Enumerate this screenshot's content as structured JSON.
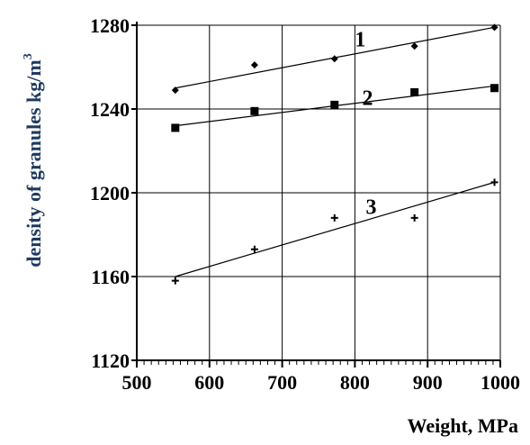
{
  "chart_data": {
    "type": "scatter",
    "xlabel": "Weight, MPa",
    "ylabel_main": "density of granules kg/m",
    "ylabel_sup": "3",
    "xlim": [
      500,
      1000
    ],
    "ylim": [
      1120,
      1280
    ],
    "xticks": [
      500,
      600,
      700,
      800,
      900,
      1000
    ],
    "yticks": [
      1120,
      1160,
      1200,
      1240,
      1280
    ],
    "grid": true,
    "xlabel_color": "#000000",
    "ylabel_color": "#1f3a5f",
    "series": [
      {
        "name": "1",
        "marker": "diamond",
        "points": [
          [
            553,
            1249
          ],
          [
            662,
            1261
          ],
          [
            772,
            1264
          ],
          [
            882,
            1270
          ],
          [
            992,
            1279
          ]
        ],
        "fit": [
          [
            553,
            1250
          ],
          [
            992,
            1279
          ]
        ]
      },
      {
        "name": "2",
        "marker": "square",
        "points": [
          [
            553,
            1231
          ],
          [
            662,
            1239
          ],
          [
            772,
            1242
          ],
          [
            882,
            1248
          ],
          [
            992,
            1250
          ]
        ],
        "fit": [
          [
            553,
            1232
          ],
          [
            992,
            1251
          ]
        ]
      },
      {
        "name": "3",
        "marker": "plus",
        "points": [
          [
            553,
            1158
          ],
          [
            662,
            1173
          ],
          [
            772,
            1188
          ],
          [
            882,
            1188
          ],
          [
            992,
            1205
          ]
        ],
        "fit": [
          [
            553,
            1160
          ],
          [
            992,
            1205
          ]
        ]
      }
    ],
    "series_label_positions": [
      [
        800,
        1270
      ],
      [
        810,
        1242
      ],
      [
        815,
        1190
      ]
    ]
  }
}
